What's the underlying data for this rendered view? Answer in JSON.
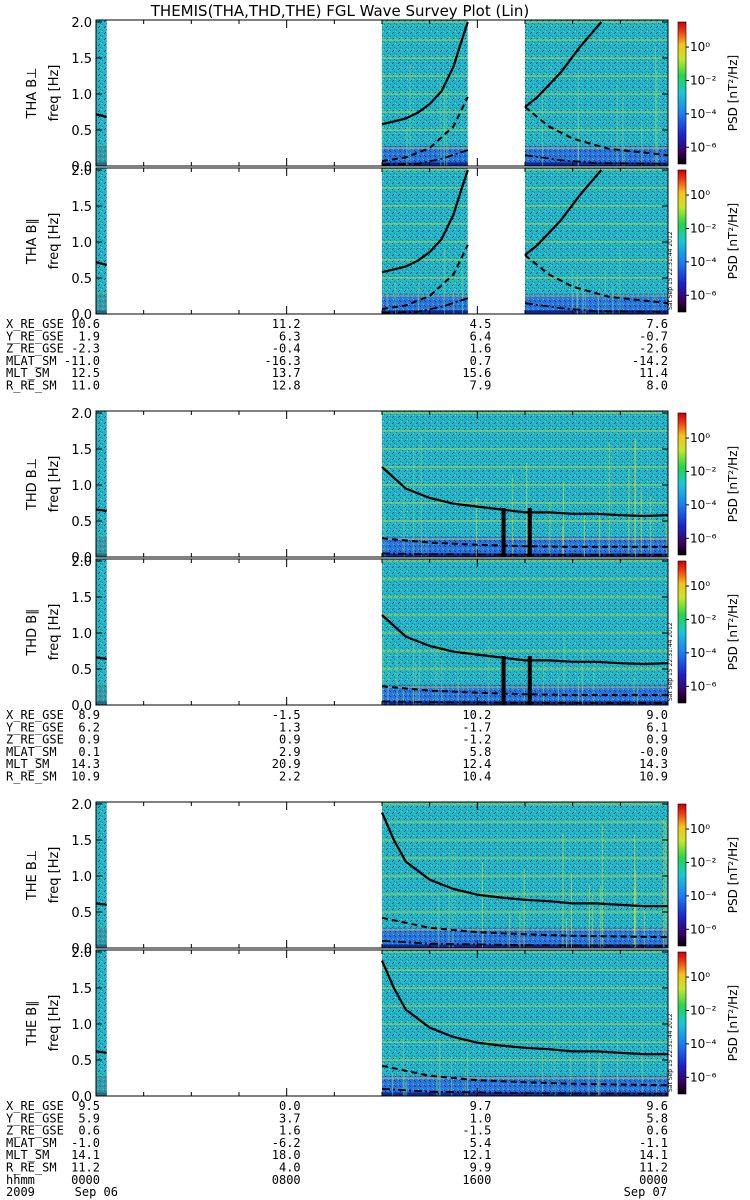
{
  "title": "THEMIS(THA,THD,THE) FGL Wave Survey Plot (Lin)",
  "colorbar": {
    "label": "PSD [nT²/Hz]",
    "ticks": [
      "10⁰",
      "10⁻²",
      "10⁻⁴",
      "10⁻⁶"
    ],
    "log_range": [
      -7,
      1.5
    ]
  },
  "stamp": "Sat Sep 15 22:31:44 2012",
  "colors": {
    "background": "#b9e9f0",
    "spectrum_base": "#1fb7c4",
    "noise": "#2a5fd6",
    "dark": "#0a1a80",
    "bright": "#e6e22a",
    "harmonic_line": "#c8d830"
  },
  "chart_data": {
    "type": "heatmap",
    "x_axis": {
      "label_rows": [
        "hhmm",
        "2009"
      ],
      "ticks": [
        {
          "time": "0000",
          "date": "Sep 06"
        },
        {
          "time": "0800",
          "date": ""
        },
        {
          "time": "1600",
          "date": ""
        },
        {
          "time": "0000",
          "date": "Sep 07"
        }
      ],
      "range_hours": [
        0,
        24
      ]
    },
    "y_axis": {
      "unit": "freq [Hz]",
      "range": [
        0,
        2.0
      ],
      "ticks": [
        "0.0",
        "0.5",
        "1.0",
        "1.5",
        "2.0"
      ]
    },
    "probes": [
      {
        "panels": [
          "THA B⊥",
          "THA B∥"
        ],
        "coverage_hours": [
          [
            0,
            0.45
          ],
          [
            12.0,
            15.6
          ],
          [
            18.0,
            24.0
          ]
        ],
        "ephemeris": [
          {
            "label": "X_RE_GSE",
            "values": [
              "10.6",
              "11.2",
              "4.5",
              "7.6"
            ]
          },
          {
            "label": "Y_RE_GSE",
            "values": [
              "1.9",
              "6.3",
              "6.4",
              "-0.7"
            ]
          },
          {
            "label": "Z_RE_GSE",
            "values": [
              "-2.3",
              "-0.4",
              "1.6",
              "-2.6"
            ]
          },
          {
            "label": "MLAT_SM",
            "values": [
              "-11.0",
              "-16.3",
              "0.7",
              "-14.2"
            ]
          },
          {
            "label": "MLT_SM",
            "values": [
              "12.5",
              "13.7",
              "15.6",
              "11.4"
            ]
          },
          {
            "label": "R_RE_SM",
            "values": [
              "11.0",
              "12.8",
              "7.9",
              "8.0"
            ]
          }
        ],
        "fce_solid": [
          [
            0.0,
            0.72
          ],
          [
            0.45,
            0.68
          ],
          [
            12.0,
            0.58
          ],
          [
            12.5,
            0.62
          ],
          [
            13.0,
            0.66
          ],
          [
            13.5,
            0.74
          ],
          [
            14.0,
            0.86
          ],
          [
            14.5,
            1.04
          ],
          [
            15.0,
            1.38
          ],
          [
            15.3,
            1.7
          ],
          [
            15.6,
            2.05
          ],
          [
            18.0,
            0.82
          ],
          [
            18.5,
            0.95
          ],
          [
            19.5,
            1.3
          ],
          [
            20.3,
            1.65
          ],
          [
            21.2,
            2.05
          ]
        ],
        "fce_dashed": [
          [
            12.0,
            0.07
          ],
          [
            13.0,
            0.12
          ],
          [
            14.0,
            0.25
          ],
          [
            15.0,
            0.55
          ],
          [
            15.6,
            0.96
          ],
          [
            18.0,
            0.82
          ],
          [
            19.0,
            0.55
          ],
          [
            20.0,
            0.38
          ],
          [
            21.5,
            0.24
          ],
          [
            24.0,
            0.15
          ]
        ],
        "fce_dashdot": [
          [
            12.0,
            0.02
          ],
          [
            13.5,
            0.03
          ],
          [
            14.5,
            0.1
          ],
          [
            15.6,
            0.22
          ],
          [
            18.0,
            0.15
          ],
          [
            19.5,
            0.08
          ],
          [
            21.0,
            0.04
          ],
          [
            24.0,
            0.03
          ]
        ]
      },
      {
        "panels": [
          "THD B⊥",
          "THD B∥"
        ],
        "coverage_hours": [
          [
            0,
            0.45
          ],
          [
            12.0,
            24.0
          ]
        ],
        "ephemeris": [
          {
            "label": "X_RE_GSE",
            "values": [
              "8.9",
              "-1.5",
              "10.2",
              "9.0"
            ]
          },
          {
            "label": "Y_RE_GSE",
            "values": [
              "6.2",
              "1.3",
              "-1.7",
              "6.1"
            ]
          },
          {
            "label": "Z_RE_GSE",
            "values": [
              "0.9",
              "0.9",
              "-1.2",
              "0.9"
            ]
          },
          {
            "label": "MLAT_SM",
            "values": [
              "0.1",
              "2.9",
              "5.8",
              "-0.0"
            ]
          },
          {
            "label": "MLT_SM",
            "values": [
              "14.3",
              "20.9",
              "12.4",
              "14.3"
            ]
          },
          {
            "label": "R_RE_SM",
            "values": [
              "10.9",
              "2.2",
              "10.4",
              "10.9"
            ]
          }
        ],
        "fce_solid": [
          [
            0.0,
            0.66
          ],
          [
            0.45,
            0.64
          ],
          [
            12.0,
            1.25
          ],
          [
            13.0,
            0.95
          ],
          [
            14.0,
            0.82
          ],
          [
            15.0,
            0.74
          ],
          [
            16.0,
            0.7
          ],
          [
            17.0,
            0.66
          ],
          [
            18.0,
            0.62
          ],
          [
            19.0,
            0.62
          ],
          [
            20.0,
            0.6
          ],
          [
            21.0,
            0.6
          ],
          [
            22.0,
            0.58
          ],
          [
            23.0,
            0.57
          ],
          [
            24.0,
            0.58
          ]
        ],
        "fce_dashed": [
          [
            12.0,
            0.26
          ],
          [
            14.0,
            0.2
          ],
          [
            16.0,
            0.17
          ],
          [
            18.0,
            0.15
          ],
          [
            20.0,
            0.14
          ],
          [
            24.0,
            0.14
          ]
        ],
        "fce_dashdot": [
          [
            12.0,
            0.05
          ],
          [
            14.0,
            0.04
          ],
          [
            18.0,
            0.03
          ],
          [
            24.0,
            0.03
          ]
        ],
        "dips_hours": [
          17.1,
          18.2
        ]
      },
      {
        "panels": [
          "THE B⊥",
          "THE B∥"
        ],
        "coverage_hours": [
          [
            0,
            0.45
          ],
          [
            12.0,
            24.0
          ]
        ],
        "ephemeris": [
          {
            "label": "X_RE_GSE",
            "values": [
              "9.5",
              "0.0",
              "9.7",
              "9.6"
            ]
          },
          {
            "label": "Y_RE_GSE",
            "values": [
              "5.9",
              "3.7",
              "1.0",
              "5.8"
            ]
          },
          {
            "label": "Z_RE_GSE",
            "values": [
              "0.6",
              "1.6",
              "-1.5",
              "0.6"
            ]
          },
          {
            "label": "MLAT_SM",
            "values": [
              "-1.0",
              "-6.2",
              "5.4",
              "-1.1"
            ]
          },
          {
            "label": "MLT_SM",
            "values": [
              "14.1",
              "18.0",
              "12.1",
              "14.1"
            ]
          },
          {
            "label": "R_RE_SM",
            "values": [
              "11.2",
              "4.0",
              "9.9",
              "11.2"
            ]
          }
        ],
        "fce_solid": [
          [
            0.0,
            0.62
          ],
          [
            0.45,
            0.6
          ],
          [
            12.0,
            1.88
          ],
          [
            12.5,
            1.5
          ],
          [
            13.0,
            1.2
          ],
          [
            14.0,
            0.95
          ],
          [
            15.0,
            0.82
          ],
          [
            16.0,
            0.74
          ],
          [
            17.0,
            0.7
          ],
          [
            18.0,
            0.67
          ],
          [
            19.0,
            0.65
          ],
          [
            20.0,
            0.62
          ],
          [
            21.0,
            0.62
          ],
          [
            22.0,
            0.6
          ],
          [
            23.0,
            0.58
          ],
          [
            24.0,
            0.58
          ]
        ],
        "fce_dashed": [
          [
            12.0,
            0.42
          ],
          [
            14.0,
            0.28
          ],
          [
            16.0,
            0.22
          ],
          [
            18.0,
            0.19
          ],
          [
            20.0,
            0.17
          ],
          [
            24.0,
            0.15
          ]
        ],
        "fce_dashdot": [
          [
            12.0,
            0.1
          ],
          [
            14.0,
            0.06
          ],
          [
            18.0,
            0.04
          ],
          [
            24.0,
            0.03
          ]
        ],
        "dips_hours": []
      }
    ]
  }
}
